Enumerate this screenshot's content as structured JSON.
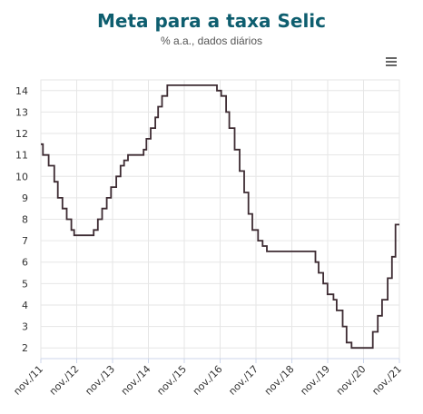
{
  "colors": {
    "title": "#0e5e6f",
    "subtitle": "#555555",
    "line": "#3d2b32",
    "grid": "#e6e6e6",
    "axis": "#ccd6eb",
    "menu": "#666666"
  },
  "header": {
    "title": "Meta para a taxa Selic",
    "subtitle": "% a.a., dados diários"
  },
  "toolbar": {
    "menu_icon": "hamburger-menu-icon"
  },
  "chart_data": {
    "type": "line",
    "title": "Meta para a taxa Selic",
    "subtitle": "% a.a., dados diários",
    "xlabel": "",
    "ylabel": "",
    "ylim": [
      1.5,
      14.5
    ],
    "yticks": [
      2,
      3,
      4,
      5,
      6,
      7,
      8,
      9,
      10,
      11,
      12,
      13,
      14
    ],
    "xlim": [
      2011.83,
      2021.95
    ],
    "xtick_labels": [
      "nov./11",
      "nov./12",
      "nov./13",
      "nov./14",
      "nov./15",
      "nov./16",
      "nov./17",
      "nov./18",
      "nov./19",
      "nov./20",
      "nov./21"
    ],
    "grid": true,
    "step": true,
    "series": [
      {
        "x": [
          2011.83,
          2011.89,
          2012.05,
          2012.21,
          2012.31,
          2012.44,
          2012.56,
          2012.69,
          2012.77,
          2012.86,
          2013.32,
          2013.44,
          2013.56,
          2013.69,
          2013.81,
          2013.96,
          2014.08,
          2014.18,
          2014.29,
          2014.73,
          2014.81,
          2014.93,
          2015.06,
          2015.14,
          2015.25,
          2015.4,
          2015.55,
          2016.8,
          2016.92,
          2017.06,
          2017.15,
          2017.3,
          2017.44,
          2017.57,
          2017.69,
          2017.8,
          2017.96,
          2018.09,
          2018.21,
          2019.58,
          2019.67,
          2019.8,
          2019.92,
          2020.09,
          2020.18,
          2020.35,
          2020.46,
          2020.6,
          2020.72,
          2021.2,
          2021.34,
          2021.46,
          2021.62,
          2021.74,
          2021.84,
          2021.95
        ],
        "values": [
          11.5,
          11.0,
          10.5,
          9.75,
          9.0,
          8.5,
          8.0,
          7.5,
          7.25,
          7.25,
          7.5,
          8.0,
          8.5,
          9.0,
          9.5,
          10.0,
          10.5,
          10.75,
          11.0,
          11.25,
          11.75,
          12.25,
          12.75,
          13.25,
          13.75,
          14.25,
          14.25,
          14.0,
          13.75,
          13.0,
          12.25,
          11.25,
          10.25,
          9.25,
          8.25,
          7.5,
          7.0,
          6.75,
          6.5,
          6.0,
          5.5,
          5.0,
          4.5,
          4.25,
          3.75,
          3.0,
          2.25,
          2.0,
          2.0,
          2.75,
          3.5,
          4.25,
          5.25,
          6.25,
          7.75,
          7.75
        ]
      }
    ]
  }
}
